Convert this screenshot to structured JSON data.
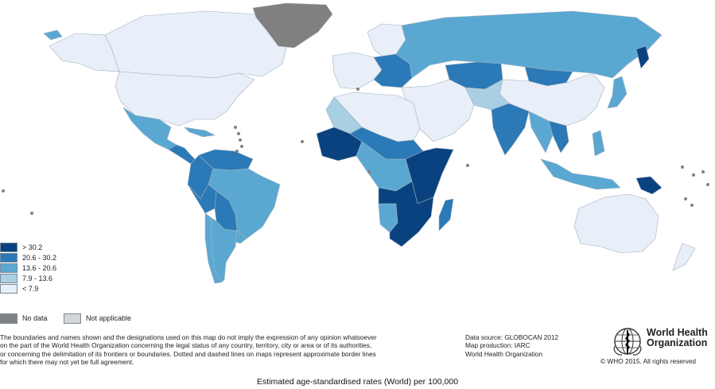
{
  "colors": {
    "ocean": "#ffffff",
    "border": "#9fb0c0",
    "class_1": "#09427e",
    "class_2": "#2b79b6",
    "class_3": "#5aa8d2",
    "class_4": "#a9cfe3",
    "class_5": "#e9eff8",
    "no_data": "#808080",
    "not_applicable": "#d6d6d6"
  },
  "legend": {
    "items": [
      {
        "label": ">  30.2",
        "class": "class_1"
      },
      {
        "label": "20.6  -  30.2",
        "class": "class_2"
      },
      {
        "label": "13.6  -  20.6",
        "class": "class_3"
      },
      {
        "label": "7.9  -  13.6",
        "class": "class_4"
      },
      {
        "label": "<  7.9",
        "class": "class_5"
      }
    ],
    "no_data_label": "No data",
    "not_applicable_label": "Not applicable"
  },
  "disclaimer": {
    "line1": "The boundaries and names shown and the designations used on this map do not imply the expression of any opinion whatsoever",
    "line2": "on the part of the World Health Organization concerning the legal status of any country, territory, city or area or of its authorities,",
    "line3": "or concerning the delimitation of its frontiers or boundaries. Dotted and dashed lines on maps represent approximate border lines",
    "line4": "for which there may not yet be full agreement."
  },
  "source": {
    "line1": "Data source: GLOBOCAN 2012",
    "line2": "Map production: IARC",
    "line3": "World Health Organization"
  },
  "who": {
    "line1": "World Health",
    "line2": "Organization",
    "copyright": "© WHO 2015. All rights reserved"
  },
  "caption": "Estimated age-standardised rates (World) per 100,000",
  "regions": [
    {
      "name": "greenland",
      "class": "no_data"
    },
    {
      "name": "canada",
      "class": "class_5"
    },
    {
      "name": "alaska",
      "class": "class_5"
    },
    {
      "name": "usa",
      "class": "class_5"
    },
    {
      "name": "mexico",
      "class": "class_3"
    },
    {
      "name": "central-america",
      "class": "class_2"
    },
    {
      "name": "caribbean",
      "class": "class_3"
    },
    {
      "name": "venezuela-guianas",
      "class": "class_2"
    },
    {
      "name": "colombia-ecuador",
      "class": "class_2"
    },
    {
      "name": "brazil",
      "class": "class_3"
    },
    {
      "name": "peru",
      "class": "class_2"
    },
    {
      "name": "bolivia-paraguay",
      "class": "class_2"
    },
    {
      "name": "chile",
      "class": "class_3"
    },
    {
      "name": "argentina",
      "class": "class_3"
    },
    {
      "name": "uruguay",
      "class": "class_3"
    },
    {
      "name": "iceland",
      "class": "class_3"
    },
    {
      "name": "scandinavia",
      "class": "class_5"
    },
    {
      "name": "western-europe",
      "class": "class_5"
    },
    {
      "name": "eastern-europe",
      "class": "class_2"
    },
    {
      "name": "russia",
      "class": "class_3"
    },
    {
      "name": "kamchatka",
      "class": "class_1"
    },
    {
      "name": "kazakhstan",
      "class": "class_2"
    },
    {
      "name": "mongolia",
      "class": "class_2"
    },
    {
      "name": "china",
      "class": "class_5"
    },
    {
      "name": "middle-east",
      "class": "class_5"
    },
    {
      "name": "central-asia",
      "class": "class_4"
    },
    {
      "name": "india",
      "class": "class_2"
    },
    {
      "name": "myanmar-thailand",
      "class": "class_3"
    },
    {
      "name": "indochina",
      "class": "class_2"
    },
    {
      "name": "japan",
      "class": "class_3"
    },
    {
      "name": "philippines",
      "class": "class_3"
    },
    {
      "name": "indonesia",
      "class": "class_3"
    },
    {
      "name": "papua-new-guinea",
      "class": "class_1"
    },
    {
      "name": "australia",
      "class": "class_5"
    },
    {
      "name": "new-zealand",
      "class": "class_5"
    },
    {
      "name": "north-africa",
      "class": "class_5"
    },
    {
      "name": "algeria-libya",
      "class": "class_4"
    },
    {
      "name": "west-africa",
      "class": "class_1"
    },
    {
      "name": "sahel",
      "class": "class_2"
    },
    {
      "name": "central-africa",
      "class": "class_3"
    },
    {
      "name": "east-africa",
      "class": "class_1"
    },
    {
      "name": "southern-africa",
      "class": "class_1"
    },
    {
      "name": "namibia",
      "class": "class_3"
    },
    {
      "name": "madagascar",
      "class": "class_2"
    }
  ]
}
